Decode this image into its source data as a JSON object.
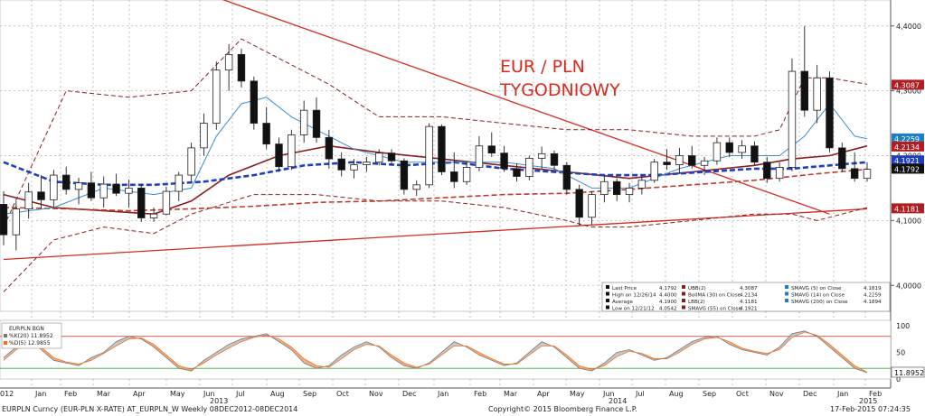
{
  "chart_data": {
    "type": "candlestick",
    "title": "EUR / PLN",
    "subtitle": "TYGODNIOWY",
    "period": "Weekly 08DEC2012-08DEC2014",
    "x_ticks": [
      "012",
      "Jan",
      "Feb",
      "Mar",
      "Apr",
      "May",
      "Jun",
      "Jul",
      "Aug",
      "Sep",
      "Oct",
      "Nov",
      "Dec",
      "Jan",
      "Feb",
      "Mar",
      "Apr",
      "May",
      "Jun",
      "Jul",
      "Aug",
      "Sep",
      "Oct",
      "Nov",
      "Dec",
      "Jan",
      "Feb"
    ],
    "x_years": [
      "2013",
      "2014",
      "2015"
    ],
    "y_ticks": [
      "4,4000",
      "4,3000",
      "4,2000",
      "4,1000",
      "4,0000"
    ],
    "ylim": [
      3.96,
      4.44
    ],
    "osc_ticks": [
      "100",
      "50",
      "0"
    ],
    "price_labels": [
      {
        "text": "4.3087",
        "color": "#b01e23",
        "value": 4.3087
      },
      {
        "text": "4.2259",
        "color": "#1f7fc1",
        "value": 4.2259
      },
      {
        "text": "4.2134",
        "color": "#b01e23",
        "value": 4.2134
      },
      {
        "text": "4.1921",
        "color": "#1f3fc1",
        "value": 4.1921
      },
      {
        "text": "4.1792",
        "color": "#111111",
        "value": 4.1792
      },
      {
        "text": "4.1181",
        "color": "#b01e23",
        "value": 4.1181
      }
    ],
    "osc_label": {
      "text": "11.8952",
      "value": 11.8952
    },
    "legend": [
      [
        "Last Price",
        "4.1792",
        "UBB(2)",
        "4.3087",
        "SMAVG (5) on Close",
        "4.1819"
      ],
      [
        "High on 12/26/14",
        "4.4000",
        "BollMA (30) on Close",
        "4.2134",
        "SMAVG (14) on Close",
        "4.2259"
      ],
      [
        "Average",
        "4.1900",
        "LBB(2)",
        "4.1181",
        "SMAVG (200) on Close",
        "4.1894"
      ],
      [
        "Low on 12/21/12",
        "4.0542",
        "SMAVG (55) on Close",
        "4.1921",
        "",
        ""
      ]
    ],
    "osc_legend": [
      "EURPLN BGN",
      "%K(20) 11.8952",
      "%D(5) 12.9855"
    ],
    "candles": [
      {
        "o": 4.125,
        "h": 4.145,
        "l": 4.062,
        "c": 4.078
      },
      {
        "o": 4.078,
        "h": 4.13,
        "l": 4.054,
        "c": 4.118
      },
      {
        "o": 4.118,
        "h": 4.158,
        "l": 4.103,
        "c": 4.144
      },
      {
        "o": 4.144,
        "h": 4.17,
        "l": 4.118,
        "c": 4.132
      },
      {
        "o": 4.132,
        "h": 4.178,
        "l": 4.12,
        "c": 4.17
      },
      {
        "o": 4.17,
        "h": 4.183,
        "l": 4.14,
        "c": 4.148
      },
      {
        "o": 4.148,
        "h": 4.166,
        "l": 4.125,
        "c": 4.158
      },
      {
        "o": 4.158,
        "h": 4.175,
        "l": 4.13,
        "c": 4.135
      },
      {
        "o": 4.135,
        "h": 4.168,
        "l": 4.12,
        "c": 4.156
      },
      {
        "o": 4.156,
        "h": 4.172,
        "l": 4.138,
        "c": 4.142
      },
      {
        "o": 4.142,
        "h": 4.163,
        "l": 4.12,
        "c": 4.15
      },
      {
        "o": 4.15,
        "h": 4.156,
        "l": 4.098,
        "c": 4.104
      },
      {
        "o": 4.104,
        "h": 4.12,
        "l": 4.098,
        "c": 4.11
      },
      {
        "o": 4.11,
        "h": 4.152,
        "l": 4.108,
        "c": 4.145
      },
      {
        "o": 4.145,
        "h": 4.175,
        "l": 4.13,
        "c": 4.17
      },
      {
        "o": 4.17,
        "h": 4.22,
        "l": 4.16,
        "c": 4.212
      },
      {
        "o": 4.212,
        "h": 4.265,
        "l": 4.2,
        "c": 4.25
      },
      {
        "o": 4.25,
        "h": 4.345,
        "l": 4.24,
        "c": 4.332
      },
      {
        "o": 4.332,
        "h": 4.372,
        "l": 4.3,
        "c": 4.356
      },
      {
        "o": 4.356,
        "h": 4.365,
        "l": 4.305,
        "c": 4.315
      },
      {
        "o": 4.315,
        "h": 4.322,
        "l": 4.24,
        "c": 4.25
      },
      {
        "o": 4.25,
        "h": 4.275,
        "l": 4.21,
        "c": 4.218
      },
      {
        "o": 4.218,
        "h": 4.228,
        "l": 4.175,
        "c": 4.183
      },
      {
        "o": 4.183,
        "h": 4.24,
        "l": 4.178,
        "c": 4.232
      },
      {
        "o": 4.232,
        "h": 4.285,
        "l": 4.22,
        "c": 4.27
      },
      {
        "o": 4.27,
        "h": 4.29,
        "l": 4.22,
        "c": 4.228
      },
      {
        "o": 4.228,
        "h": 4.24,
        "l": 4.18,
        "c": 4.195
      },
      {
        "o": 4.195,
        "h": 4.205,
        "l": 4.168,
        "c": 4.178
      },
      {
        "o": 4.178,
        "h": 4.195,
        "l": 4.165,
        "c": 4.186
      },
      {
        "o": 4.186,
        "h": 4.198,
        "l": 4.175,
        "c": 4.19
      },
      {
        "o": 4.19,
        "h": 4.21,
        "l": 4.185,
        "c": 4.204
      },
      {
        "o": 4.204,
        "h": 4.21,
        "l": 4.185,
        "c": 4.192
      },
      {
        "o": 4.192,
        "h": 4.196,
        "l": 4.14,
        "c": 4.148
      },
      {
        "o": 4.148,
        "h": 4.162,
        "l": 4.138,
        "c": 4.155
      },
      {
        "o": 4.155,
        "h": 4.25,
        "l": 4.15,
        "c": 4.245
      },
      {
        "o": 4.245,
        "h": 4.248,
        "l": 4.17,
        "c": 4.175
      },
      {
        "o": 4.175,
        "h": 4.205,
        "l": 4.15,
        "c": 4.16
      },
      {
        "o": 4.16,
        "h": 4.19,
        "l": 4.155,
        "c": 4.182
      },
      {
        "o": 4.182,
        "h": 4.23,
        "l": 4.176,
        "c": 4.215
      },
      {
        "o": 4.215,
        "h": 4.236,
        "l": 4.198,
        "c": 4.204
      },
      {
        "o": 4.204,
        "h": 4.215,
        "l": 4.175,
        "c": 4.18
      },
      {
        "o": 4.18,
        "h": 4.188,
        "l": 4.16,
        "c": 4.168
      },
      {
        "o": 4.168,
        "h": 4.2,
        "l": 4.162,
        "c": 4.196
      },
      {
        "o": 4.196,
        "h": 4.214,
        "l": 4.18,
        "c": 4.203
      },
      {
        "o": 4.203,
        "h": 4.208,
        "l": 4.178,
        "c": 4.185
      },
      {
        "o": 4.185,
        "h": 4.19,
        "l": 4.14,
        "c": 4.148
      },
      {
        "o": 4.148,
        "h": 4.155,
        "l": 4.092,
        "c": 4.105
      },
      {
        "o": 4.105,
        "h": 4.145,
        "l": 4.094,
        "c": 4.14
      },
      {
        "o": 4.14,
        "h": 4.17,
        "l": 4.128,
        "c": 4.16
      },
      {
        "o": 4.16,
        "h": 4.165,
        "l": 4.13,
        "c": 4.14
      },
      {
        "o": 4.14,
        "h": 4.158,
        "l": 4.128,
        "c": 4.15
      },
      {
        "o": 4.15,
        "h": 4.168,
        "l": 4.14,
        "c": 4.162
      },
      {
        "o": 4.162,
        "h": 4.195,
        "l": 4.158,
        "c": 4.19
      },
      {
        "o": 4.19,
        "h": 4.21,
        "l": 4.178,
        "c": 4.186
      },
      {
        "o": 4.186,
        "h": 4.212,
        "l": 4.172,
        "c": 4.2
      },
      {
        "o": 4.2,
        "h": 4.215,
        "l": 4.18,
        "c": 4.185
      },
      {
        "o": 4.185,
        "h": 4.198,
        "l": 4.17,
        "c": 4.192
      },
      {
        "o": 4.192,
        "h": 4.228,
        "l": 4.186,
        "c": 4.22
      },
      {
        "o": 4.22,
        "h": 4.228,
        "l": 4.198,
        "c": 4.205
      },
      {
        "o": 4.205,
        "h": 4.224,
        "l": 4.195,
        "c": 4.215
      },
      {
        "o": 4.215,
        "h": 4.222,
        "l": 4.185,
        "c": 4.19
      },
      {
        "o": 4.19,
        "h": 4.198,
        "l": 4.158,
        "c": 4.165
      },
      {
        "o": 4.165,
        "h": 4.19,
        "l": 4.16,
        "c": 4.182
      },
      {
        "o": 4.182,
        "h": 4.35,
        "l": 4.176,
        "c": 4.33
      },
      {
        "o": 4.33,
        "h": 4.4,
        "l": 4.26,
        "c": 4.27
      },
      {
        "o": 4.27,
        "h": 4.34,
        "l": 4.25,
        "c": 4.32
      },
      {
        "o": 4.32,
        "h": 4.33,
        "l": 4.205,
        "c": 4.212
      },
      {
        "o": 4.212,
        "h": 4.22,
        "l": 4.175,
        "c": 4.18
      },
      {
        "o": 4.18,
        "h": 4.205,
        "l": 4.16,
        "c": 4.165
      },
      {
        "o": 4.165,
        "h": 4.19,
        "l": 4.16,
        "c": 4.179
      }
    ],
    "lines": {
      "ubb": {
        "color": "#8b1e1e",
        "values": [
          [
            0,
            4.09
          ],
          [
            5,
            4.3
          ],
          [
            10,
            4.29
          ],
          [
            15,
            4.3
          ],
          [
            19,
            4.38
          ],
          [
            22,
            4.35
          ],
          [
            26,
            4.31
          ],
          [
            30,
            4.26
          ],
          [
            35,
            4.26
          ],
          [
            40,
            4.25
          ],
          [
            45,
            4.24
          ],
          [
            50,
            4.24
          ],
          [
            55,
            4.23
          ],
          [
            60,
            4.23
          ],
          [
            62,
            4.24
          ],
          [
            64,
            4.32
          ],
          [
            66,
            4.32
          ],
          [
            69,
            4.31
          ]
        ]
      },
      "lbb": {
        "color": "#8b1e1e",
        "values": [
          [
            0,
            3.99
          ],
          [
            4,
            4.07
          ],
          [
            8,
            4.09
          ],
          [
            12,
            4.08
          ],
          [
            15,
            4.11
          ],
          [
            20,
            4.14
          ],
          [
            25,
            4.14
          ],
          [
            30,
            4.13
          ],
          [
            35,
            4.13
          ],
          [
            40,
            4.12
          ],
          [
            45,
            4.1
          ],
          [
            47,
            4.09
          ],
          [
            50,
            4.09
          ],
          [
            55,
            4.1
          ],
          [
            60,
            4.11
          ],
          [
            63,
            4.11
          ],
          [
            65,
            4.1
          ],
          [
            69,
            4.12
          ]
        ]
      },
      "bollma": {
        "color": "#8b1e1e",
        "values": [
          [
            0,
            4.14
          ],
          [
            4,
            4.12
          ],
          [
            8,
            4.115
          ],
          [
            12,
            4.11
          ],
          [
            15,
            4.13
          ],
          [
            18,
            4.17
          ],
          [
            22,
            4.2
          ],
          [
            26,
            4.215
          ],
          [
            30,
            4.205
          ],
          [
            35,
            4.195
          ],
          [
            40,
            4.185
          ],
          [
            45,
            4.175
          ],
          [
            50,
            4.165
          ],
          [
            55,
            4.175
          ],
          [
            60,
            4.185
          ],
          [
            63,
            4.195
          ],
          [
            66,
            4.2
          ],
          [
            69,
            4.215
          ]
        ]
      },
      "sma55": {
        "color": "#1f3fc1",
        "values": [
          [
            0,
            4.19
          ],
          [
            4,
            4.16
          ],
          [
            8,
            4.155
          ],
          [
            12,
            4.155
          ],
          [
            16,
            4.16
          ],
          [
            20,
            4.17
          ],
          [
            24,
            4.185
          ],
          [
            28,
            4.19
          ],
          [
            32,
            4.185
          ],
          [
            36,
            4.19
          ],
          [
            40,
            4.18
          ],
          [
            44,
            4.175
          ],
          [
            48,
            4.17
          ],
          [
            52,
            4.17
          ],
          [
            56,
            4.175
          ],
          [
            60,
            4.18
          ],
          [
            63,
            4.18
          ],
          [
            66,
            4.185
          ],
          [
            69,
            4.19
          ]
        ]
      },
      "sma200": {
        "color": "#c0392b",
        "values": [
          [
            0,
            4.12
          ],
          [
            5,
            4.118
          ],
          [
            10,
            4.115
          ],
          [
            15,
            4.118
          ],
          [
            20,
            4.122
          ],
          [
            25,
            4.128
          ],
          [
            30,
            4.13
          ],
          [
            35,
            4.135
          ],
          [
            40,
            4.14
          ],
          [
            45,
            4.142
          ],
          [
            50,
            4.148
          ],
          [
            55,
            4.155
          ],
          [
            60,
            4.162
          ],
          [
            65,
            4.172
          ],
          [
            69,
            4.179
          ]
        ]
      },
      "sma14": {
        "color": "#3a8fd0",
        "values": [
          [
            0,
            4.11
          ],
          [
            4,
            4.12
          ],
          [
            8,
            4.15
          ],
          [
            12,
            4.14
          ],
          [
            15,
            4.15
          ],
          [
            17,
            4.23
          ],
          [
            19,
            4.28
          ],
          [
            21,
            4.29
          ],
          [
            23,
            4.26
          ],
          [
            25,
            4.24
          ],
          [
            28,
            4.21
          ],
          [
            32,
            4.19
          ],
          [
            36,
            4.19
          ],
          [
            40,
            4.19
          ],
          [
            44,
            4.18
          ],
          [
            47,
            4.15
          ],
          [
            50,
            4.15
          ],
          [
            54,
            4.18
          ],
          [
            58,
            4.2
          ],
          [
            62,
            4.2
          ],
          [
            64,
            4.23
          ],
          [
            66,
            4.28
          ],
          [
            68,
            4.23
          ],
          [
            69,
            4.226
          ]
        ]
      }
    },
    "channel_lines": [
      {
        "name": "upper",
        "values": [
          [
            0,
            4.56
          ],
          [
            66,
            4.11
          ]
        ]
      },
      {
        "name": "lower",
        "values": [
          [
            0,
            4.04
          ],
          [
            69,
            4.118
          ]
        ]
      }
    ],
    "oscillator": {
      "pk": [
        40,
        60,
        80,
        55,
        35,
        30,
        25,
        40,
        50,
        70,
        80,
        75,
        60,
        40,
        20,
        15,
        35,
        50,
        65,
        75,
        80,
        85,
        70,
        55,
        30,
        20,
        25,
        45,
        60,
        70,
        60,
        40,
        25,
        20,
        30,
        50,
        70,
        60,
        45,
        35,
        25,
        30,
        50,
        70,
        60,
        40,
        20,
        15,
        30,
        50,
        55,
        45,
        35,
        40,
        55,
        70,
        78,
        80,
        65,
        55,
        50,
        45,
        60,
        85,
        90,
        80,
        60,
        40,
        20,
        12
      ],
      "pd": [
        35,
        55,
        72,
        60,
        40,
        32,
        28,
        35,
        48,
        62,
        75,
        77,
        65,
        45,
        25,
        18,
        30,
        45,
        58,
        70,
        78,
        82,
        75,
        60,
        38,
        25,
        22,
        38,
        55,
        65,
        62,
        45,
        30,
        22,
        28,
        45,
        62,
        62,
        50,
        38,
        28,
        28,
        45,
        62,
        62,
        45,
        25,
        18,
        25,
        42,
        52,
        48,
        38,
        38,
        50,
        65,
        75,
        78,
        70,
        58,
        52,
        48,
        55,
        78,
        88,
        82,
        65,
        45,
        25,
        13
      ]
    }
  },
  "footer": {
    "left": "EURPLN Curncy (EUR-PLN X-RATE) AT_EURPLN_W Weekly 08DEC2012-08DEC2014",
    "center": "Copyright© 2015 Bloomberg Finance L.P.",
    "right": "17-Feb-2015 07:24:35"
  }
}
